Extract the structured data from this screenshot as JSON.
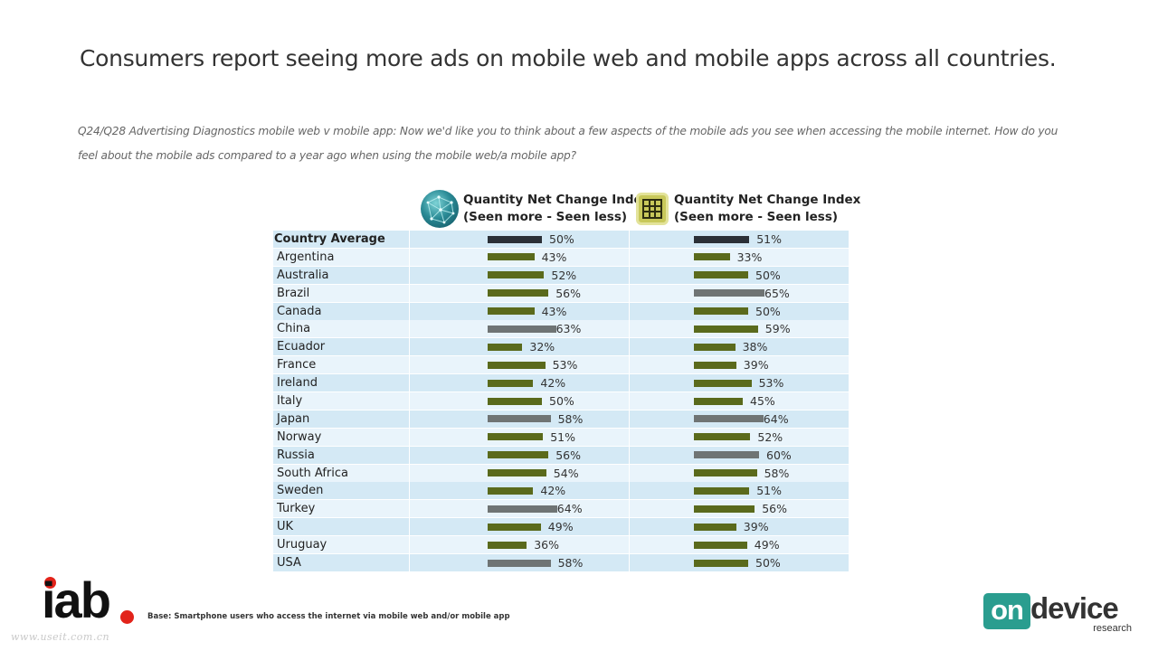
{
  "title": "Consumers report seeing more ads on mobile web and mobile apps across all countries.",
  "question": "Q24/Q28 Advertising Diagnostics mobile web v mobile app: Now we'd like you to think about a few aspects of the mobile ads you see when accessing the mobile internet. How do you feel about the mobile ads compared to a year ago when using the mobile web/a mobile app?",
  "columns": [
    {
      "line1": "Quantity Net Change Index",
      "line2": "(Seen more - Seen less)",
      "icon": "globe-icon"
    },
    {
      "line1": "Quantity Net Change Index",
      "line2": "(Seen more - Seen less)",
      "icon": "app-grid-icon"
    }
  ],
  "base_note": "Base: Smartphone users who access the internet via mobile web and/or mobile app",
  "logos": {
    "iab": "iab",
    "ondevice_on": "on",
    "ondevice_device": "device",
    "ondevice_research": "research"
  },
  "watermark": "www.useit.com.cn",
  "colors": {
    "average": "#2b3037",
    "normal": "#5a6a1c",
    "highlight": "#6f7474",
    "row_odd": "#d4e9f5",
    "row_even": "#e9f4fb"
  },
  "chart_data": {
    "type": "bar",
    "categories": [
      "Country Average",
      "Argentina",
      "Australia",
      "Brazil",
      "Canada",
      "China",
      "Ecuador",
      "France",
      "Ireland",
      "Italy",
      "Japan",
      "Norway",
      "Russia",
      "South Africa",
      "Sweden",
      "Turkey",
      "UK",
      "Uruguay",
      "USA"
    ],
    "series": [
      {
        "values": [
          50,
          43,
          52,
          56,
          43,
          63,
          32,
          53,
          42,
          50,
          58,
          51,
          56,
          54,
          42,
          64,
          49,
          36,
          58
        ],
        "labels": [
          "50%",
          "43%",
          "52%",
          "56%",
          "43%",
          "63%",
          "32%",
          "53%",
          "42%",
          "50%",
          "58%",
          "51%",
          "56%",
          "54%",
          "42%",
          "64%",
          "49%",
          "36%",
          "58%"
        ],
        "highlight": [
          false,
          false,
          false,
          false,
          false,
          true,
          false,
          false,
          false,
          false,
          true,
          false,
          false,
          false,
          false,
          true,
          false,
          false,
          true
        ]
      },
      {
        "values": [
          51,
          33,
          50,
          65,
          50,
          59,
          38,
          39,
          53,
          45,
          64,
          52,
          60,
          58,
          51,
          56,
          39,
          49,
          50
        ],
        "labels": [
          "51%",
          "33%",
          "50%",
          "65%",
          "50%",
          "59%",
          "38%",
          "39%",
          "53%",
          "45%",
          "64%",
          "52%",
          "60%",
          "58%",
          "51%",
          "56%",
          "39%",
          "49%",
          "50%"
        ],
        "highlight": [
          false,
          false,
          false,
          true,
          false,
          false,
          false,
          false,
          false,
          false,
          true,
          false,
          true,
          false,
          false,
          false,
          false,
          false,
          false
        ]
      }
    ]
  }
}
